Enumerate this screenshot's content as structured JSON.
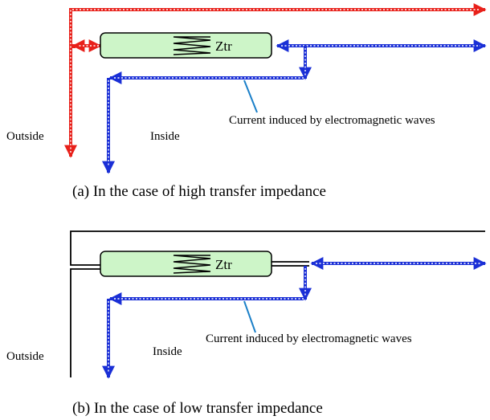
{
  "panels": [
    {
      "impedance_label": "Ztr",
      "annotation": "Current induced by electromagnetic waves",
      "outside": "Outside",
      "inside": "Inside",
      "caption": "(a)  In  the  case  of  high  transfer  impedance"
    },
    {
      "impedance_label": "Ztr",
      "annotation": "Current induced by electromagnetic waves",
      "outside": "Outside",
      "inside": "Inside",
      "caption": "(b)  In  the  case  of  low  transfer  impedance"
    }
  ]
}
